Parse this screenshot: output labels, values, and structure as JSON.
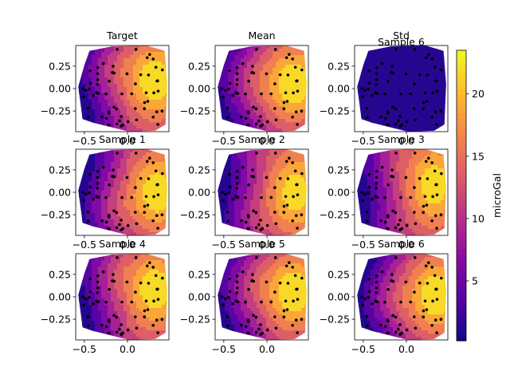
{
  "chart_data": {
    "type": "contour-grid",
    "layout": {
      "rows": 3,
      "cols": 3
    },
    "panels": [
      {
        "title": "Target",
        "style": "field",
        "variant": 0
      },
      {
        "title": "Mean",
        "style": "field",
        "variant": 1
      },
      {
        "title": "Std",
        "style": "uniform",
        "variant": 2
      },
      {
        "title": "Sample 1",
        "style": "field",
        "variant": 3
      },
      {
        "title": "Sample 2",
        "style": "field",
        "variant": 4
      },
      {
        "title": "Sample 3",
        "style": "field",
        "variant": 5
      },
      {
        "title": "Sample 4",
        "style": "field",
        "variant": 6
      },
      {
        "title": "Sample 5",
        "style": "field",
        "variant": 7
      },
      {
        "title": "Sample 6",
        "style": "field",
        "variant": 8
      }
    ],
    "overlap_title": "Sample 6",
    "xlim": [
      -0.6,
      0.48
    ],
    "ylim": [
      -0.48,
      0.48
    ],
    "xticks": [
      -0.5,
      0.0
    ],
    "xtick_labels": [
      "−0.5",
      "0.0"
    ],
    "yticks": [
      0.25,
      0.0,
      -0.25
    ],
    "ytick_labels": [
      "0.25",
      "0.00",
      "−0.25"
    ],
    "colorbar": {
      "label": "microGal",
      "colormap": "plasma",
      "range": [
        0.2,
        23.5
      ],
      "ticks": [
        5,
        10,
        15,
        20
      ],
      "tick_labels": [
        "5",
        "10",
        "15",
        "20"
      ]
    },
    "contour_levels": [
      0.2,
      2.5,
      5,
      7.5,
      10,
      12.5,
      15,
      17.5,
      20,
      23.5
    ],
    "grid": false,
    "legend": "none"
  }
}
